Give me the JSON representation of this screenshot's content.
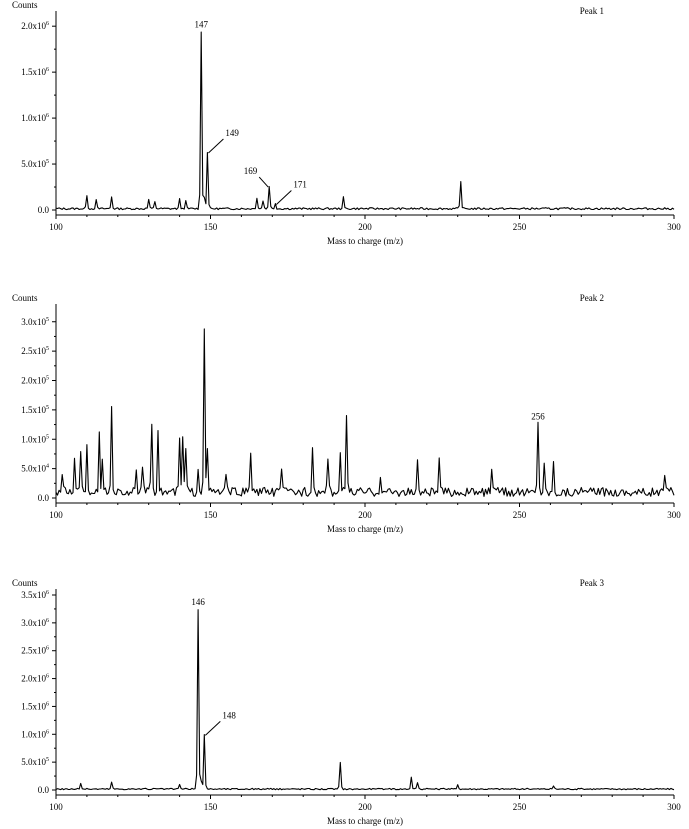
{
  "chart_data": [
    {
      "type": "line",
      "title": "Peak 1",
      "ylabel": "Counts",
      "xlabel": "Mass to charge (m/z)",
      "xlim": [
        100,
        300
      ],
      "xticks": [
        100,
        150,
        200,
        250,
        300
      ],
      "ylim": [
        0,
        2100000
      ],
      "yticks": [
        {
          "value": 0,
          "mantissa": "0.0",
          "exp": ""
        },
        {
          "value": 500000,
          "mantissa": "5.0x10",
          "exp": "5"
        },
        {
          "value": 1000000,
          "mantissa": "1.0x10",
          "exp": "6"
        },
        {
          "value": 1500000,
          "mantissa": "1.5x10",
          "exp": "6"
        },
        {
          "value": 2000000,
          "mantissa": "2.0x10",
          "exp": "6"
        }
      ],
      "noise": 25000,
      "peaks": [
        {
          "x": 110,
          "y": 150000
        },
        {
          "x": 113,
          "y": 90000
        },
        {
          "x": 118,
          "y": 130000
        },
        {
          "x": 130,
          "y": 100000
        },
        {
          "x": 132,
          "y": 80000
        },
        {
          "x": 140,
          "y": 100000
        },
        {
          "x": 142,
          "y": 80000
        },
        {
          "x": 147,
          "y": 1930000
        },
        {
          "x": 148,
          "y": 120000
        },
        {
          "x": 149,
          "y": 620000
        },
        {
          "x": 165,
          "y": 120000
        },
        {
          "x": 167,
          "y": 90000
        },
        {
          "x": 169,
          "y": 250000
        },
        {
          "x": 171,
          "y": 60000
        },
        {
          "x": 193,
          "y": 120000
        },
        {
          "x": 231,
          "y": 290000
        }
      ],
      "labels": [
        {
          "text": "147",
          "x": 147,
          "y": 1930000,
          "style": "top"
        },
        {
          "text": "149",
          "x": 149,
          "y": 620000,
          "style": "leader-right"
        },
        {
          "text": "169",
          "x": 169,
          "y": 250000,
          "style": "leader-left"
        },
        {
          "text": "171",
          "x": 171,
          "y": 60000,
          "style": "leader-right"
        }
      ]
    },
    {
      "type": "line",
      "title": "Peak 2",
      "ylabel": "Counts",
      "xlabel": "Mass to charge (m/z)",
      "xlim": [
        100,
        300
      ],
      "xticks": [
        100,
        150,
        200,
        250,
        300
      ],
      "ylim": [
        0,
        320000
      ],
      "yticks": [
        {
          "value": 0,
          "mantissa": "0.0",
          "exp": ""
        },
        {
          "value": 50000,
          "mantissa": "5.0x10",
          "exp": "4"
        },
        {
          "value": 100000,
          "mantissa": "1.0x10",
          "exp": "5"
        },
        {
          "value": 150000,
          "mantissa": "1.5x10",
          "exp": "5"
        },
        {
          "value": 200000,
          "mantissa": "2.0x10",
          "exp": "5"
        },
        {
          "value": 250000,
          "mantissa": "2.5x10",
          "exp": "5"
        },
        {
          "value": 300000,
          "mantissa": "3.0x10",
          "exp": "5"
        }
      ],
      "noise": 18000,
      "peaks": [
        {
          "x": 102,
          "y": 30000
        },
        {
          "x": 106,
          "y": 62000
        },
        {
          "x": 108,
          "y": 65000
        },
        {
          "x": 110,
          "y": 80000
        },
        {
          "x": 114,
          "y": 95000
        },
        {
          "x": 115,
          "y": 50000
        },
        {
          "x": 118,
          "y": 145000
        },
        {
          "x": 126,
          "y": 30000
        },
        {
          "x": 128,
          "y": 35000
        },
        {
          "x": 131,
          "y": 115000
        },
        {
          "x": 133,
          "y": 97000
        },
        {
          "x": 140,
          "y": 88000
        },
        {
          "x": 141,
          "y": 93000
        },
        {
          "x": 142,
          "y": 75000
        },
        {
          "x": 146,
          "y": 45000
        },
        {
          "x": 148,
          "y": 285000
        },
        {
          "x": 149,
          "y": 68000
        },
        {
          "x": 155,
          "y": 30000
        },
        {
          "x": 163,
          "y": 70000
        },
        {
          "x": 173,
          "y": 45000
        },
        {
          "x": 183,
          "y": 68000
        },
        {
          "x": 188,
          "y": 50000
        },
        {
          "x": 192,
          "y": 60000
        },
        {
          "x": 194,
          "y": 132000
        },
        {
          "x": 205,
          "y": 30000
        },
        {
          "x": 217,
          "y": 48000
        },
        {
          "x": 224,
          "y": 52000
        },
        {
          "x": 241,
          "y": 35000
        },
        {
          "x": 256,
          "y": 125000
        },
        {
          "x": 258,
          "y": 45000
        },
        {
          "x": 261,
          "y": 48000
        },
        {
          "x": 297,
          "y": 32000
        }
      ],
      "labels": [
        {
          "text": "256",
          "x": 256,
          "y": 125000,
          "style": "top"
        }
      ]
    },
    {
      "type": "line",
      "title": "Peak 3",
      "ylabel": "Counts",
      "xlabel": "Mass to charge (m/z)",
      "xlim": [
        100,
        300
      ],
      "xticks": [
        100,
        150,
        200,
        250,
        300
      ],
      "ylim": [
        0,
        3500000
      ],
      "yticks": [
        {
          "value": 0,
          "mantissa": "0.0",
          "exp": ""
        },
        {
          "value": 500000,
          "mantissa": "5.0x10",
          "exp": "5"
        },
        {
          "value": 1000000,
          "mantissa": "1.0x10",
          "exp": "6"
        },
        {
          "value": 1500000,
          "mantissa": "1.5x10",
          "exp": "6"
        },
        {
          "value": 2000000,
          "mantissa": "2.0x10",
          "exp": "6"
        },
        {
          "value": 2500000,
          "mantissa": "2.5x10",
          "exp": "6"
        },
        {
          "value": 3000000,
          "mantissa": "3.0x10",
          "exp": "6"
        },
        {
          "value": 3500000,
          "mantissa": "3.5x10",
          "exp": "6"
        }
      ],
      "noise": 30000,
      "peaks": [
        {
          "x": 108,
          "y": 110000
        },
        {
          "x": 118,
          "y": 120000
        },
        {
          "x": 140,
          "y": 80000
        },
        {
          "x": 146,
          "y": 3230000
        },
        {
          "x": 147,
          "y": 150000
        },
        {
          "x": 148,
          "y": 980000
        },
        {
          "x": 192,
          "y": 470000
        },
        {
          "x": 215,
          "y": 210000
        },
        {
          "x": 217,
          "y": 120000
        },
        {
          "x": 230,
          "y": 90000
        },
        {
          "x": 261,
          "y": 60000
        }
      ],
      "labels": [
        {
          "text": "146",
          "x": 146,
          "y": 3230000,
          "style": "top"
        },
        {
          "text": "148",
          "x": 148,
          "y": 980000,
          "style": "leader-right"
        }
      ]
    }
  ]
}
